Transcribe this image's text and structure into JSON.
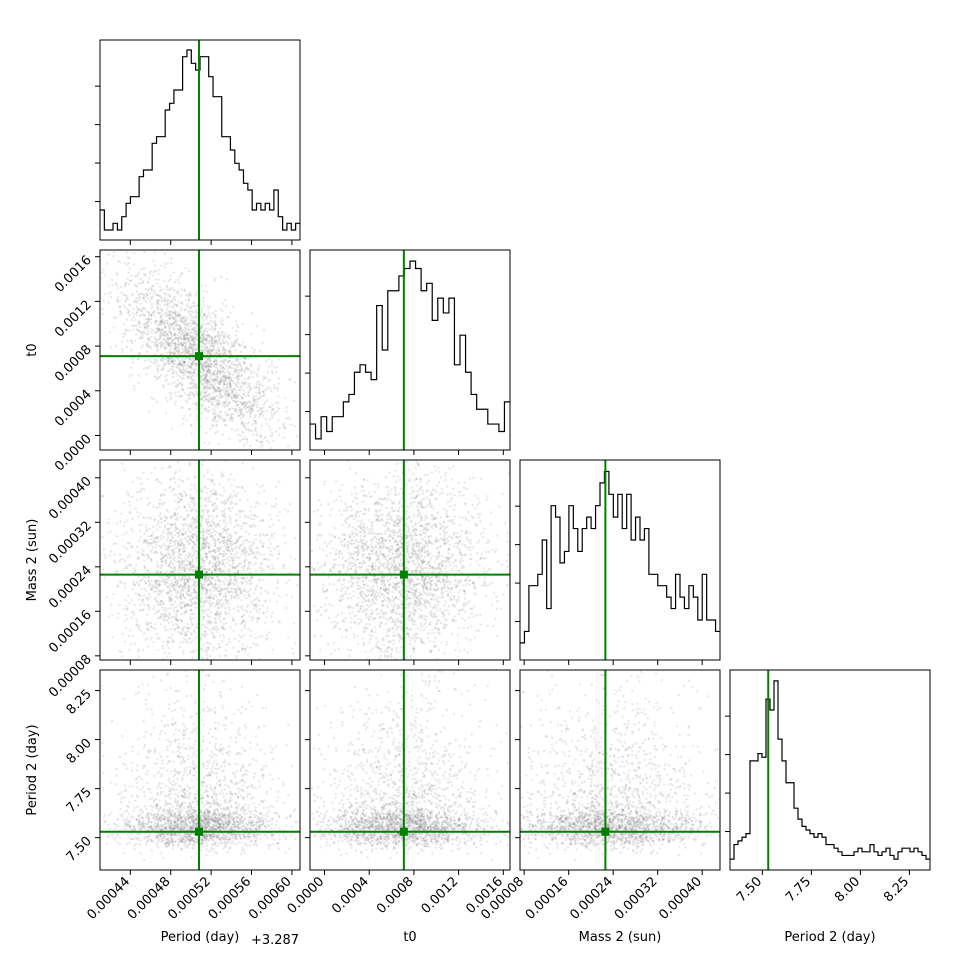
{
  "chart_data": {
    "type": "corner",
    "parameters": [
      {
        "name": "period",
        "label": "Period (day)",
        "offset_label": "+3.287",
        "range": [
          0.00041,
          0.000608
        ],
        "ticks": [
          0.00044,
          0.00048,
          0.00052,
          0.00056,
          0.0006
        ],
        "tick_labels": [
          "0.00044",
          "0.00048",
          "0.00052",
          "0.00056",
          "0.00060"
        ],
        "truth": 0.000508
      },
      {
        "name": "t0",
        "label": "t0",
        "range": [
          -0.00013,
          0.00166
        ],
        "ticks": [
          0.0,
          0.0004,
          0.0008,
          0.0012,
          0.0016
        ],
        "tick_labels": [
          "0.0000",
          "0.0004",
          "0.0008",
          "0.0012",
          "0.0016"
        ],
        "truth": 0.00071
      },
      {
        "name": "mass2",
        "label": "Mass 2 (sun)",
        "range": [
          7.25e-05,
          0.000432
        ],
        "ticks": [
          8e-05,
          0.00016,
          0.00024,
          0.00032,
          0.0004
        ],
        "tick_labels": [
          "0.00008",
          "0.00016",
          "0.00024",
          "0.00032",
          "0.00040"
        ],
        "truth": 0.000226
      },
      {
        "name": "period2",
        "label": "Period 2 (day)",
        "range": [
          7.335,
          8.355
        ],
        "ticks": [
          7.5,
          7.75,
          8.0,
          8.25
        ],
        "tick_labels": [
          "7.50",
          "7.75",
          "8.00",
          "8.25"
        ],
        "truth": 7.53
      }
    ],
    "histograms": [
      {
        "param": "period",
        "counts": [
          10,
          7,
          7,
          8,
          7,
          9,
          11,
          12,
          12,
          15,
          16,
          16,
          20,
          21,
          21,
          25,
          26,
          28,
          28,
          33,
          34,
          32,
          31,
          33,
          33,
          30,
          27,
          27,
          21,
          21,
          19,
          17,
          16,
          14,
          13,
          10,
          11,
          10,
          11,
          10,
          13,
          9,
          7,
          8,
          7,
          8
        ],
        "ylim": [
          5.5,
          35.5
        ]
      },
      {
        "param": "t0",
        "counts": [
          7,
          5,
          8,
          6,
          8,
          8,
          10,
          11,
          14,
          15,
          14,
          13,
          23,
          17,
          25,
          25,
          27,
          28,
          29,
          28,
          25,
          26,
          21,
          24,
          22,
          24,
          15,
          19,
          14,
          11,
          9,
          9,
          7,
          7,
          6,
          10
        ],
        "ylim": [
          3.5,
          30.5
        ]
      },
      {
        "param": "mass2",
        "counts": [
          4,
          5,
          9,
          9,
          10,
          13,
          7,
          16,
          15,
          11,
          12,
          16,
          14,
          12,
          14,
          15,
          14,
          16,
          18,
          19,
          17,
          15,
          17,
          14,
          17,
          13,
          15,
          13,
          14,
          10,
          10,
          9,
          9,
          8,
          7,
          10,
          8,
          7,
          9,
          8,
          6,
          10,
          6,
          6,
          5
        ],
        "ylim": [
          2.5,
          20
        ]
      },
      {
        "param": "period2",
        "counts": [
          3,
          7,
          8,
          9,
          10,
          30,
          30,
          32,
          31,
          47,
          44,
          52,
          36,
          30,
          24,
          24,
          17,
          14,
          12,
          11,
          10,
          9,
          10,
          9,
          7,
          7,
          6,
          5,
          4,
          4,
          4,
          5,
          6,
          5,
          5,
          7,
          5,
          4,
          5,
          6,
          4,
          3,
          5,
          6,
          6,
          5,
          6,
          5,
          4,
          3
        ],
        "ylim": [
          0,
          55
        ]
      }
    ],
    "scatter": {
      "n_samples": 2500,
      "point_color": "#808080",
      "point_opacity": 0.18,
      "correlations": {
        "period_t0": -0.7,
        "period_mass2": 0.0,
        "t0_mass2": 0.0
      },
      "period2_distribution": {
        "mode": 7.55,
        "tail_max": 8.35,
        "min": 7.34
      }
    },
    "truth_color": "#008000",
    "grid": false,
    "legend": "none"
  }
}
